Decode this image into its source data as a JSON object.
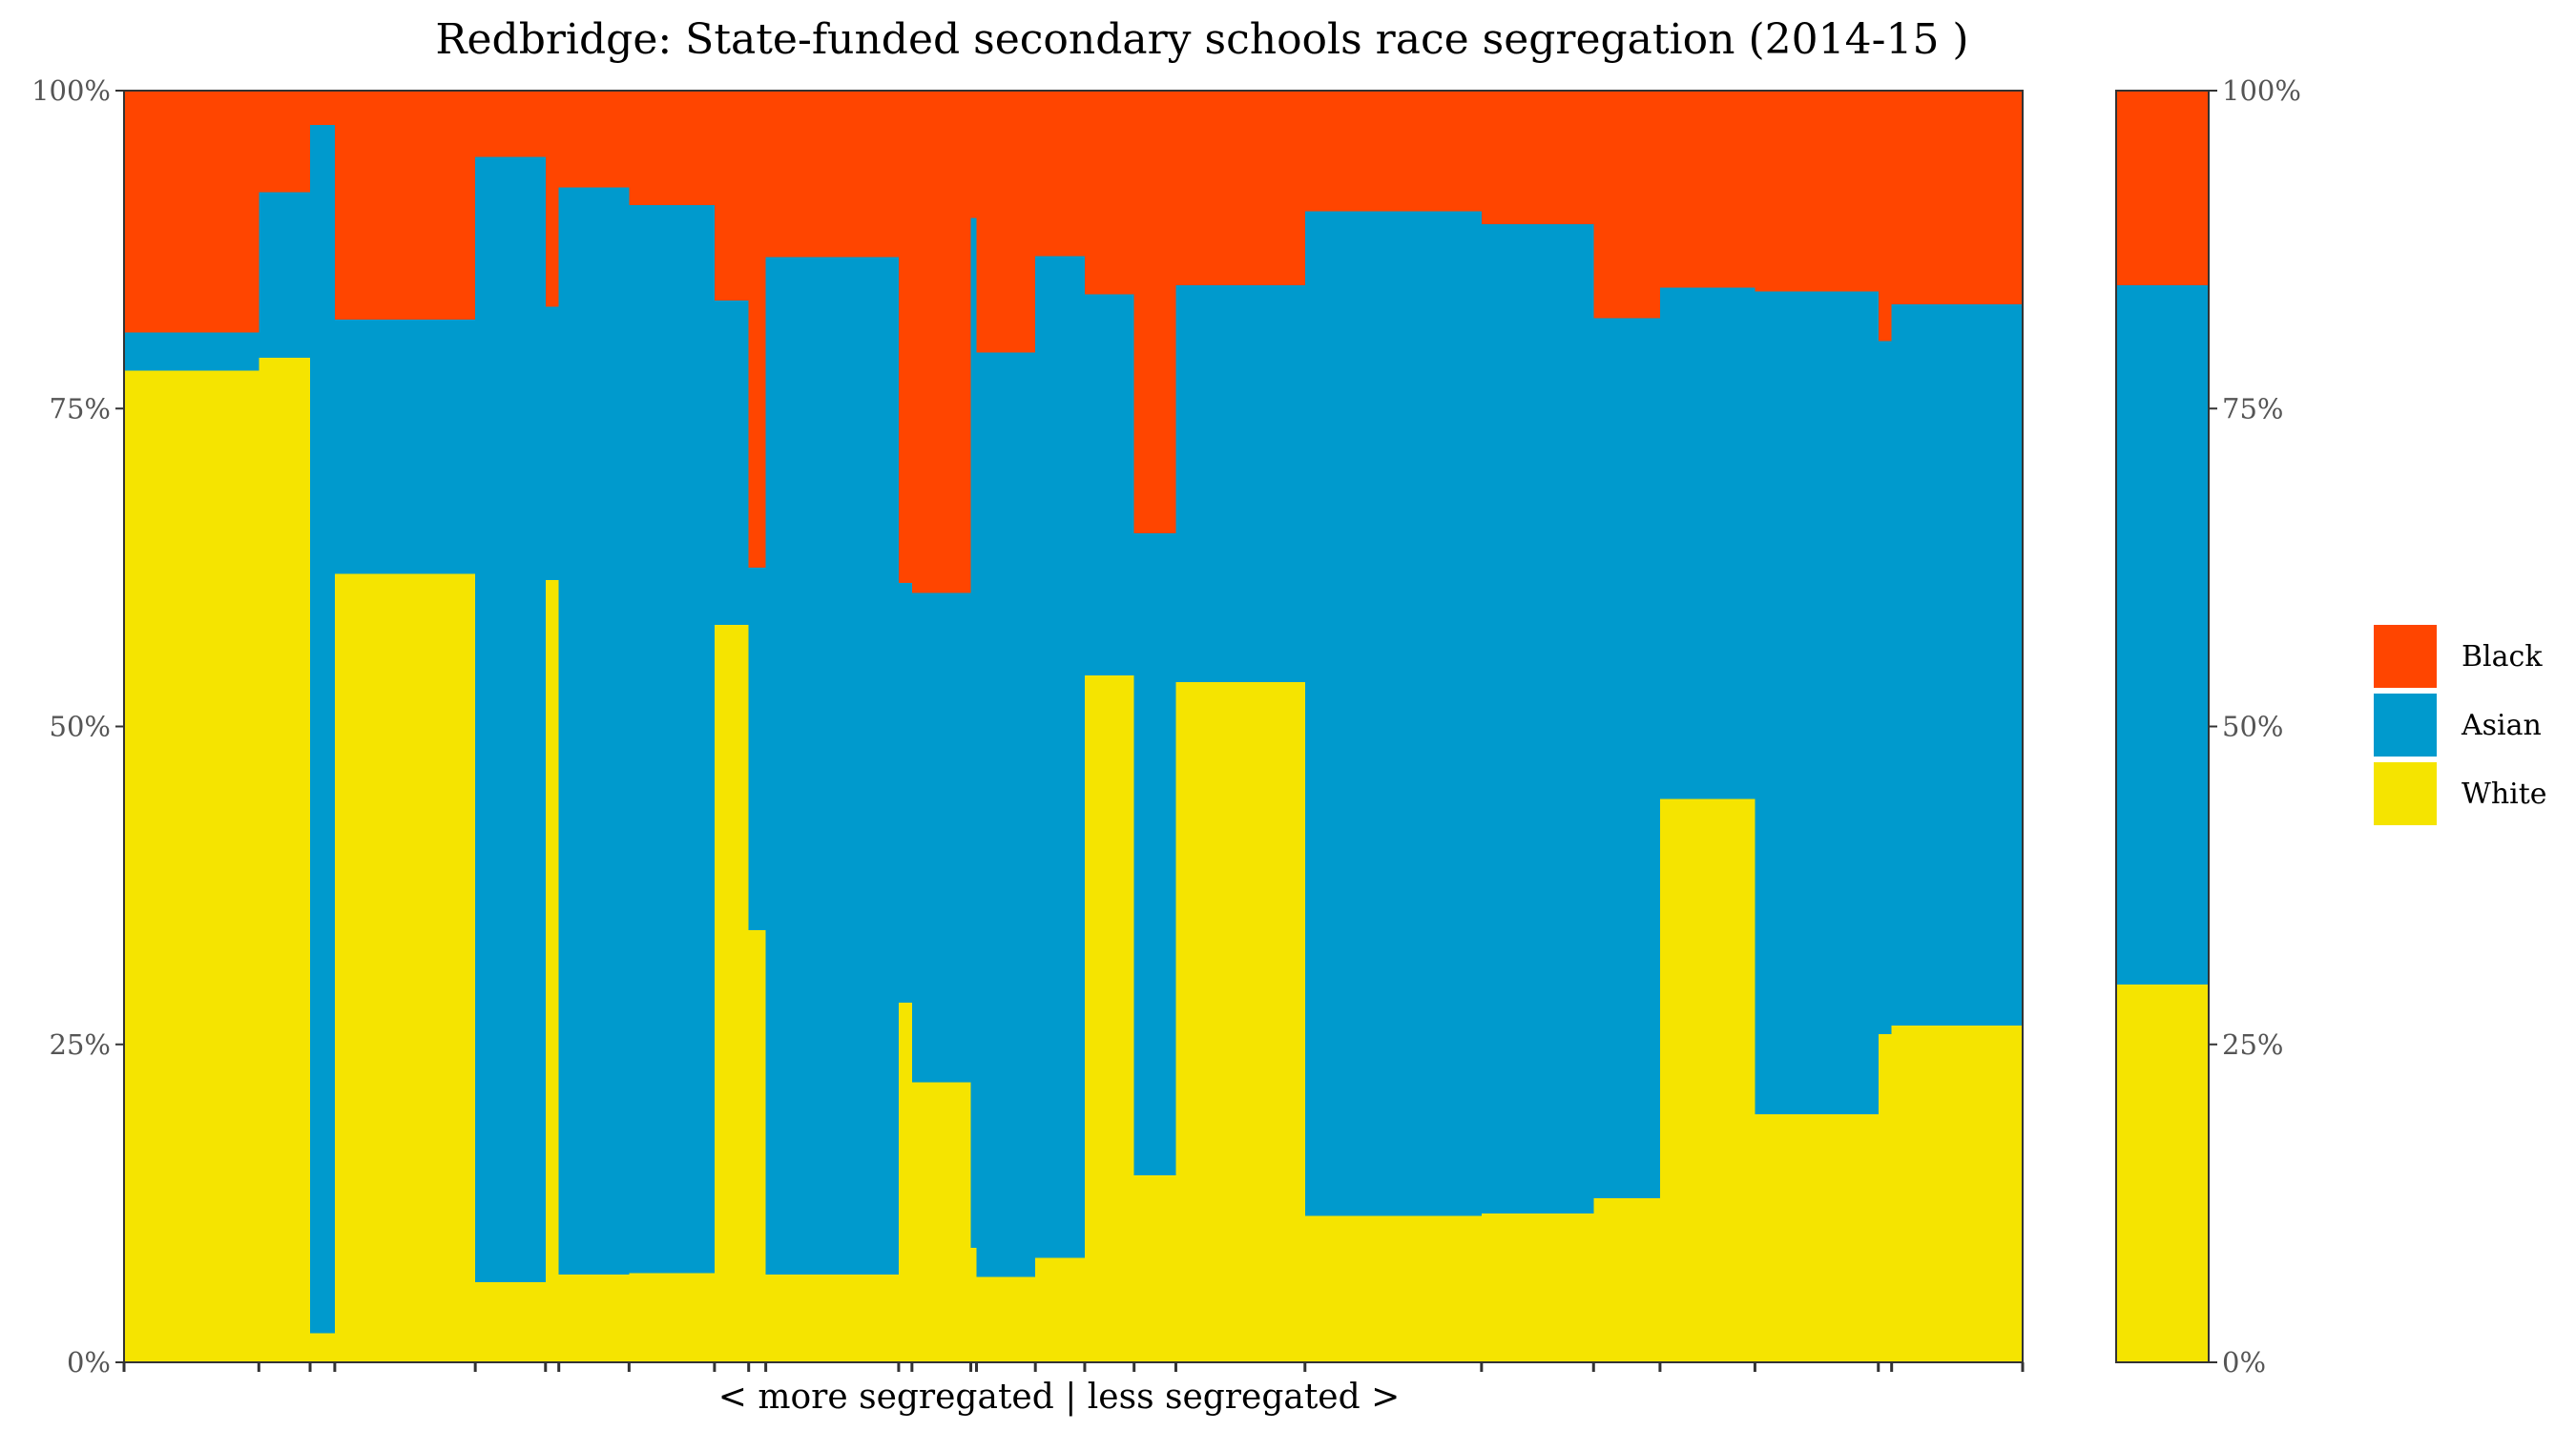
{
  "chart_data": {
    "type": "bar",
    "subtype": "stacked-variable-width (mosaic)",
    "title": "Redbridge: State-funded secondary schools race segregation (2014-15 )",
    "xlabel": "< more segregated | less segregated >",
    "ylabel": "",
    "ylim": [
      0,
      100
    ],
    "y_ticks": [
      "0%",
      "25%",
      "50%",
      "75%",
      "100%"
    ],
    "stack_order": [
      "White",
      "Asian",
      "Black"
    ],
    "legend": {
      "placement": "right",
      "entries": [
        {
          "name": "Black",
          "color": "#ff4500"
        },
        {
          "name": "Asian",
          "color": "#009acd"
        },
        {
          "name": "White",
          "color": "#f5e400"
        }
      ]
    },
    "grid": false,
    "x_range": [
      0,
      100
    ],
    "schools": [
      {
        "x0": 0.0,
        "x1": 7.1,
        "white": 78.0,
        "asian": 3.0
      },
      {
        "x0": 7.1,
        "x1": 9.8,
        "white": 79.0,
        "asian": 13.0
      },
      {
        "x0": 9.8,
        "x1": 11.1,
        "white": 2.3,
        "asian": 95.0
      },
      {
        "x0": 11.1,
        "x1": 18.5,
        "white": 62.0,
        "asian": 20.0
      },
      {
        "x0": 18.5,
        "x1": 22.2,
        "white": 6.3,
        "asian": 88.5
      },
      {
        "x0": 22.2,
        "x1": 22.9,
        "white": 61.5,
        "asian": 21.5
      },
      {
        "x0": 22.9,
        "x1": 26.6,
        "white": 6.9,
        "asian": 85.5
      },
      {
        "x0": 26.6,
        "x1": 31.1,
        "white": 7.0,
        "asian": 84.0
      },
      {
        "x0": 31.1,
        "x1": 32.9,
        "white": 58.0,
        "asian": 25.5
      },
      {
        "x0": 32.9,
        "x1": 33.8,
        "white": 34.0,
        "asian": 28.5
      },
      {
        "x0": 33.8,
        "x1": 40.8,
        "white": 6.9,
        "asian": 80.0
      },
      {
        "x0": 40.8,
        "x1": 41.5,
        "white": 28.3,
        "asian": 33.0
      },
      {
        "x0": 41.5,
        "x1": 44.6,
        "white": 22.0,
        "asian": 38.5
      },
      {
        "x0": 44.6,
        "x1": 44.9,
        "white": 9.0,
        "asian": 81.0
      },
      {
        "x0": 44.9,
        "x1": 48.0,
        "white": 6.7,
        "asian": 72.7
      },
      {
        "x0": 48.0,
        "x1": 50.6,
        "white": 8.2,
        "asian": 78.8
      },
      {
        "x0": 50.6,
        "x1": 53.2,
        "white": 54.0,
        "asian": 30.0
      },
      {
        "x0": 53.2,
        "x1": 55.4,
        "white": 14.7,
        "asian": 50.5
      },
      {
        "x0": 55.4,
        "x1": 62.2,
        "white": 53.5,
        "asian": 31.2
      },
      {
        "x0": 62.2,
        "x1": 71.5,
        "white": 11.5,
        "asian": 79.0
      },
      {
        "x0": 71.5,
        "x1": 77.4,
        "white": 11.7,
        "asian": 77.8
      },
      {
        "x0": 77.4,
        "x1": 80.9,
        "white": 12.9,
        "asian": 69.2
      },
      {
        "x0": 80.9,
        "x1": 85.9,
        "white": 44.3,
        "asian": 40.2
      },
      {
        "x0": 85.9,
        "x1": 92.4,
        "white": 19.5,
        "asian": 64.7
      },
      {
        "x0": 92.4,
        "x1": 93.1,
        "white": 25.8,
        "asian": 54.5
      },
      {
        "x0": 93.1,
        "x1": 100.0,
        "white": 26.5,
        "asian": 56.7
      }
    ],
    "total": {
      "white": 29.7,
      "asian": 55.0,
      "black": 15.3
    }
  }
}
